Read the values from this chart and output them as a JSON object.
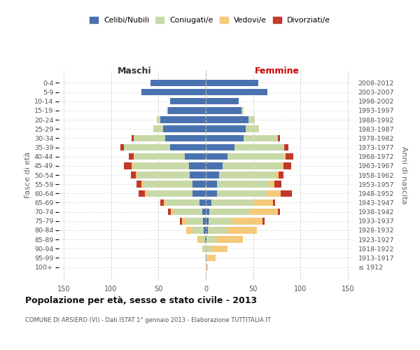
{
  "age_groups": [
    "100+",
    "95-99",
    "90-94",
    "85-89",
    "80-84",
    "75-79",
    "70-74",
    "65-69",
    "60-64",
    "55-59",
    "50-54",
    "45-49",
    "40-44",
    "35-39",
    "30-34",
    "25-29",
    "20-24",
    "15-19",
    "10-14",
    "5-9",
    "0-4"
  ],
  "birth_years": [
    "≤ 1912",
    "1913-1917",
    "1918-1922",
    "1923-1927",
    "1928-1932",
    "1933-1937",
    "1938-1942",
    "1943-1947",
    "1948-1952",
    "1953-1957",
    "1958-1962",
    "1963-1967",
    "1968-1972",
    "1973-1977",
    "1978-1982",
    "1983-1987",
    "1988-1992",
    "1993-1997",
    "1998-2002",
    "2003-2007",
    "2008-2012"
  ],
  "males_celibe": [
    0,
    0,
    0,
    1,
    2,
    3,
    4,
    7,
    14,
    14,
    17,
    18,
    22,
    38,
    43,
    45,
    48,
    40,
    38,
    68,
    58
  ],
  "males_coniug": [
    0,
    1,
    2,
    4,
    12,
    18,
    30,
    35,
    48,
    52,
    55,
    58,
    53,
    48,
    33,
    10,
    4,
    1,
    0,
    0,
    0
  ],
  "males_vedovo": [
    0,
    0,
    2,
    4,
    7,
    4,
    3,
    2,
    2,
    2,
    2,
    2,
    1,
    0,
    0,
    0,
    0,
    0,
    0,
    0,
    0
  ],
  "males_divorziat": [
    0,
    0,
    0,
    0,
    0,
    2,
    3,
    4,
    7,
    5,
    5,
    8,
    5,
    4,
    2,
    0,
    0,
    0,
    0,
    0,
    0
  ],
  "fem_nubile": [
    0,
    0,
    0,
    1,
    2,
    3,
    4,
    6,
    12,
    12,
    14,
    18,
    23,
    30,
    40,
    42,
    45,
    38,
    35,
    65,
    55
  ],
  "fem_coniug": [
    0,
    2,
    5,
    10,
    20,
    25,
    42,
    45,
    52,
    55,
    60,
    62,
    60,
    53,
    36,
    14,
    7,
    2,
    0,
    0,
    0
  ],
  "fem_vedova": [
    2,
    8,
    18,
    28,
    32,
    32,
    30,
    20,
    15,
    5,
    3,
    2,
    1,
    0,
    0,
    0,
    0,
    0,
    0,
    0,
    0
  ],
  "fem_divorziat": [
    0,
    0,
    0,
    0,
    0,
    2,
    2,
    2,
    12,
    8,
    5,
    8,
    8,
    4,
    2,
    0,
    0,
    0,
    0,
    0,
    0
  ],
  "c_celibe": "#4A72B0",
  "c_coniug": "#c8d9a8",
  "c_vedovo": "#f5c97a",
  "c_divorziat": "#c0392b",
  "xlim": 155,
  "title": "Popolazione per età, sesso e stato civile - 2013",
  "subtitle": "COMUNE DI ARSIERO (VI) - Dati ISTAT 1° gennaio 2013 - Elaborazione TUTTITALIA.IT",
  "ylabel_left": "Fasce di età",
  "ylabel_right": "Anni di nascita",
  "label_maschi": "Maschi",
  "label_femmine": "Femmine",
  "legend_labels": [
    "Celibi/Nubili",
    "Coniugati/e",
    "Vedovi/e",
    "Divorziati/e"
  ],
  "grid_color": "#cccccc",
  "background_color": "#ffffff"
}
